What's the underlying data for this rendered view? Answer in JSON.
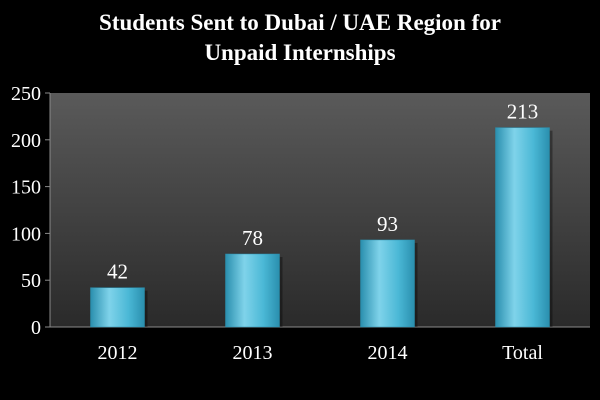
{
  "chart_data": {
    "type": "bar",
    "title_lines": [
      "Students Sent to Dubai / UAE Region for",
      "Unpaid Internships"
    ],
    "categories": [
      "2012",
      "2013",
      "2014",
      "Total"
    ],
    "values": [
      42,
      78,
      93,
      213
    ],
    "data_labels": [
      "42",
      "78",
      "93",
      "213"
    ],
    "ylim": [
      0,
      250
    ],
    "yticks": [
      0,
      50,
      100,
      150,
      200,
      250
    ],
    "grid": false,
    "legend": "none",
    "colors": {
      "background": "#000000",
      "plot_background_top": "#5a5a5a",
      "plot_background_bottom": "#2a2a2a",
      "bar_light": "#7fd3ea",
      "bar_mid": "#4bb8d6",
      "bar_dark": "#2a8fae",
      "text": "#ffffff",
      "axis": "#8a8a8a"
    }
  }
}
